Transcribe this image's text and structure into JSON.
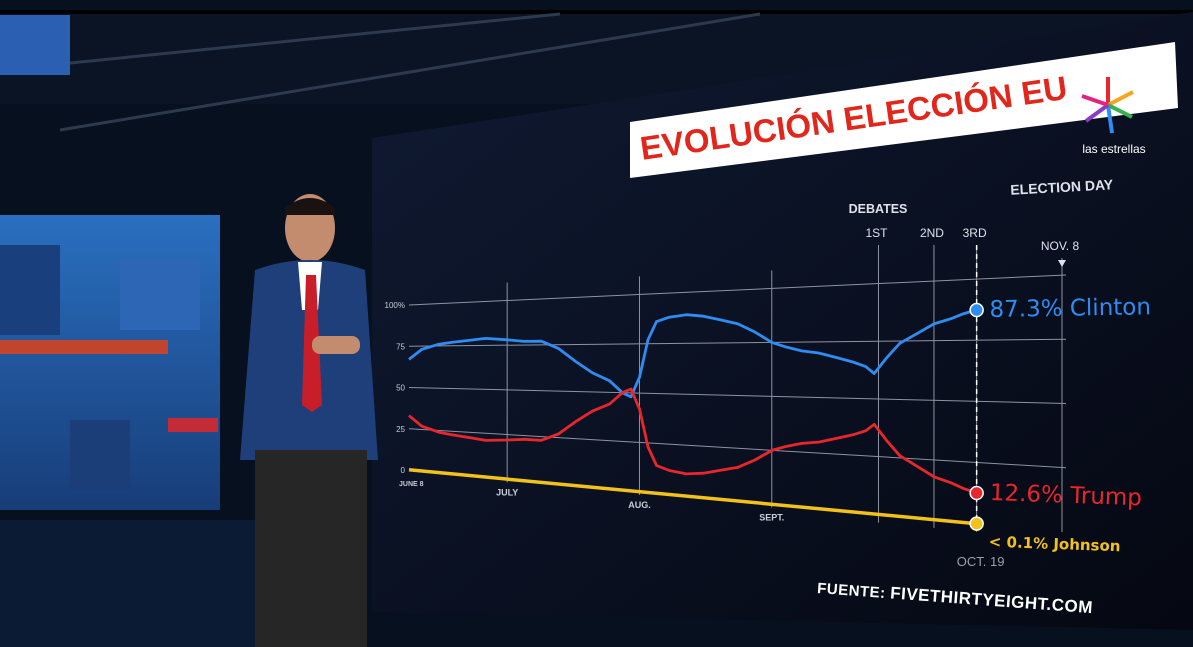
{
  "broadcast": {
    "channel_logo_text": "las estrellas",
    "source_label": "FUENTE:",
    "source_site": "FIVETHIRTYEIGHT.COM"
  },
  "colors": {
    "clinton": "#2f8cf0",
    "trump": "#e8262b",
    "johnson": "#f2c21b",
    "title_red": "#e1261c"
  },
  "chart_data": {
    "type": "line",
    "title": "EVOLUCIÓN ELECCIÓN EU",
    "xlabel": "",
    "ylabel": "",
    "ylim": [
      0,
      100
    ],
    "y_ticks": [
      "0",
      "25",
      "50",
      "75",
      "100%"
    ],
    "y_tick_values": [
      0,
      25,
      50,
      75,
      100
    ],
    "x_range_days": [
      0,
      153
    ],
    "x_ticks": [
      {
        "label": "JUNE 8",
        "day": 0
      },
      {
        "label": "JULY",
        "day": 23
      },
      {
        "label": "AUG.",
        "day": 54
      },
      {
        "label": "SEPT.",
        "day": 85
      }
    ],
    "events": [
      {
        "label": "1ST",
        "day": 110,
        "group": "DEBATES"
      },
      {
        "label": "2ND",
        "day": 123,
        "group": "DEBATES"
      },
      {
        "label": "3RD",
        "day": 133,
        "group": "DEBATES"
      },
      {
        "label": "NOV. 8",
        "day": 153,
        "group": "ELECTION DAY"
      }
    ],
    "event_groups": [
      "DEBATES",
      "ELECTION DAY"
    ],
    "current_label": "OCT. 19",
    "current_day": 133,
    "series": [
      {
        "name": "Clinton",
        "end_label": "87.3% Clinton",
        "x": [
          0,
          3,
          7,
          10,
          14,
          18,
          23,
          27,
          31,
          35,
          39,
          43,
          47,
          50,
          52,
          54,
          56,
          58,
          61,
          65,
          69,
          73,
          77,
          81,
          85,
          88,
          92,
          96,
          100,
          104,
          107,
          109,
          112,
          115,
          119,
          123,
          127,
          130,
          133
        ],
        "values": [
          67,
          73,
          76,
          77,
          78,
          79,
          78,
          77,
          77,
          73,
          66,
          60,
          56,
          50,
          48,
          58,
          77,
          86,
          88,
          89,
          88,
          86,
          84,
          80,
          75,
          73,
          71,
          70,
          68,
          66,
          64,
          61,
          68,
          74,
          78,
          82,
          84,
          86,
          87.3
        ]
      },
      {
        "name": "Trump",
        "end_label": "12.6% Trump",
        "x": [
          0,
          3,
          7,
          10,
          14,
          18,
          23,
          27,
          31,
          35,
          39,
          43,
          47,
          50,
          52,
          54,
          56,
          58,
          61,
          65,
          69,
          73,
          77,
          81,
          85,
          88,
          92,
          96,
          100,
          104,
          107,
          109,
          112,
          115,
          119,
          123,
          127,
          130,
          133
        ],
        "values": [
          33,
          27,
          24,
          23,
          22,
          21,
          22,
          23,
          23,
          27,
          34,
          40,
          44,
          50,
          52,
          42,
          23,
          14,
          12,
          11,
          12,
          14,
          16,
          20,
          25,
          27,
          29,
          30,
          32,
          34,
          36,
          39,
          32,
          26,
          22,
          18,
          16,
          14,
          12.6
        ]
      },
      {
        "name": "Johnson",
        "end_label": "< 0.1% Johnson",
        "x": [
          0,
          133
        ],
        "values": [
          0.1,
          0.1
        ]
      }
    ]
  }
}
